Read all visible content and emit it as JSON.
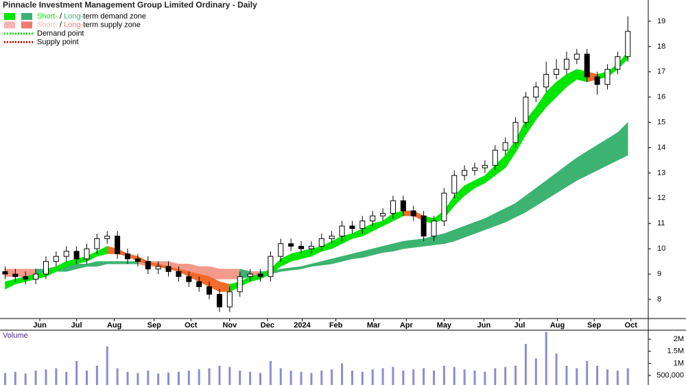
{
  "chart_data": {
    "type": "candlestick",
    "title": "Pinnacle Investment Management Group Limited Ordinary - Daily",
    "legend": [
      {
        "short": "Short-",
        "sep": " / ",
        "long": "Long-",
        "rest": "term demand zone",
        "short_color": "#00e600",
        "long_color": "#3cb371"
      },
      {
        "short": "Short-",
        "sep": " / ",
        "long": "Long-",
        "rest": "term supply zone",
        "short_color": "#f7b3b3",
        "long_color": "#f07a6e"
      },
      {
        "label": "Demand point",
        "color": "#00e600"
      },
      {
        "label": "Supply point",
        "color": "#e00000"
      }
    ],
    "xlim": [
      0,
      63.5
    ],
    "xticks": [
      {
        "value": 3.9,
        "label": "Jun"
      },
      {
        "value": 7.5,
        "label": "Jul"
      },
      {
        "value": 11.2,
        "label": "Aug"
      },
      {
        "value": 15.1,
        "label": "Sep"
      },
      {
        "value": 18.7,
        "label": "Oct"
      },
      {
        "value": 22.5,
        "label": "Nov"
      },
      {
        "value": 26.2,
        "label": "Dec"
      },
      {
        "value": 29.6,
        "label": "2024"
      },
      {
        "value": 32.9,
        "label": "Feb"
      },
      {
        "value": 36.6,
        "label": "Mar"
      },
      {
        "value": 39.8,
        "label": "Apr"
      },
      {
        "value": 43.5,
        "label": "May"
      },
      {
        "value": 47.4,
        "label": "Jun"
      },
      {
        "value": 50.9,
        "label": "Jul"
      },
      {
        "value": 54.6,
        "label": "Aug"
      },
      {
        "value": 58.2,
        "label": "Sep"
      },
      {
        "value": 61.8,
        "label": "Oct"
      }
    ],
    "ylim": [
      7.24,
      19.84
    ],
    "yticks": [
      8,
      9,
      10,
      11,
      12,
      13,
      14,
      15,
      16,
      17,
      18,
      19
    ],
    "open": [
      9.1,
      9.0,
      8.9,
      8.8,
      9.0,
      9.5,
      9.7,
      9.9,
      9.6,
      10.0,
      10.4,
      10.5,
      9.8,
      9.6,
      9.5,
      9.2,
      9.3,
      9.1,
      8.9,
      8.7,
      8.5,
      8.2,
      7.7,
      8.3,
      8.9,
      9.0,
      8.9,
      9.7,
      10.2,
      10.1,
      10.0,
      10.1,
      10.4,
      10.5,
      10.9,
      10.8,
      11.1,
      11.3,
      11.4,
      11.9,
      11.5,
      11.3,
      10.5,
      11.1,
      12.2,
      12.9,
      13.1,
      13.2,
      13.3,
      13.9,
      14.2,
      15.0,
      16.0,
      16.4,
      16.9,
      17.1,
      17.5,
      17.7,
      16.8,
      16.5,
      17.1,
      17.6
    ],
    "high": [
      9.3,
      9.2,
      9.1,
      9.2,
      9.7,
      9.9,
      10.1,
      10.1,
      10.2,
      10.6,
      10.7,
      10.7,
      10.0,
      9.8,
      9.7,
      9.5,
      9.5,
      9.3,
      9.1,
      8.9,
      8.7,
      8.4,
      8.5,
      9.1,
      9.2,
      9.2,
      9.9,
      10.4,
      10.4,
      10.3,
      10.3,
      10.6,
      10.7,
      11.1,
      11.1,
      11.3,
      11.5,
      11.6,
      12.1,
      12.1,
      11.7,
      11.5,
      11.3,
      12.4,
      13.1,
      13.3,
      13.4,
      13.5,
      14.1,
      14.4,
      15.2,
      16.2,
      16.6,
      17.4,
      17.5,
      17.8,
      17.9,
      17.9,
      17.0,
      17.3,
      17.8,
      19.2
    ],
    "low": [
      8.8,
      8.7,
      8.6,
      8.6,
      8.8,
      9.3,
      9.5,
      9.4,
      9.4,
      9.8,
      10.2,
      9.6,
      9.4,
      9.3,
      9.0,
      9.0,
      8.9,
      8.7,
      8.5,
      8.3,
      8.0,
      7.5,
      7.5,
      8.1,
      8.7,
      8.7,
      8.7,
      9.5,
      9.9,
      9.8,
      9.8,
      9.9,
      10.2,
      10.3,
      10.6,
      10.6,
      10.9,
      11.1,
      11.2,
      11.3,
      11.1,
      10.3,
      10.3,
      10.9,
      12.0,
      12.7,
      12.9,
      13.0,
      13.1,
      13.7,
      14.0,
      14.8,
      15.8,
      16.2,
      16.7,
      16.9,
      17.3,
      16.6,
      16.1,
      16.3,
      16.9,
      17.4
    ],
    "close": [
      9.0,
      8.9,
      8.8,
      9.0,
      9.5,
      9.7,
      9.9,
      9.6,
      10.0,
      10.4,
      10.5,
      9.8,
      9.6,
      9.5,
      9.2,
      9.3,
      9.1,
      8.9,
      8.7,
      8.5,
      8.2,
      7.7,
      8.3,
      8.9,
      9.0,
      8.9,
      9.7,
      10.2,
      10.1,
      10.0,
      10.1,
      10.4,
      10.5,
      10.9,
      10.8,
      11.1,
      11.3,
      11.4,
      11.9,
      11.5,
      11.3,
      10.5,
      11.1,
      12.2,
      12.9,
      13.1,
      13.2,
      13.3,
      13.9,
      14.2,
      15.0,
      16.0,
      16.4,
      16.9,
      17.1,
      17.5,
      17.7,
      16.8,
      16.5,
      17.1,
      17.6,
      18.6
    ],
    "short_zone": {
      "demand_color": "#00e600",
      "supply_color": "#f26b2a",
      "upper": [
        8.7,
        8.8,
        8.9,
        9.0,
        9.1,
        9.3,
        9.5,
        9.6,
        9.7,
        9.9,
        10.1,
        10.0,
        9.8,
        9.7,
        9.5,
        9.4,
        9.3,
        9.2,
        9.1,
        9.0,
        8.9,
        8.7,
        8.6,
        8.7,
        8.9,
        9.0,
        9.2,
        9.6,
        9.8,
        9.9,
        10.0,
        10.1,
        10.3,
        10.5,
        10.6,
        10.8,
        11.0,
        11.1,
        11.4,
        11.5,
        11.5,
        11.3,
        11.2,
        11.5,
        12.1,
        12.5,
        12.7,
        12.9,
        13.3,
        13.7,
        14.3,
        15.1,
        15.6,
        16.2,
        16.6,
        16.9,
        17.1,
        17.0,
        16.9,
        17.0,
        17.3,
        17.8
      ],
      "lower": [
        8.4,
        8.6,
        8.7,
        8.8,
        8.9,
        9.1,
        9.3,
        9.4,
        9.5,
        9.7,
        9.8,
        9.8,
        9.7,
        9.5,
        9.4,
        9.3,
        9.2,
        9.1,
        8.9,
        8.7,
        8.5,
        8.3,
        8.3,
        8.5,
        8.7,
        8.8,
        9.0,
        9.3,
        9.5,
        9.6,
        9.7,
        9.9,
        10.0,
        10.2,
        10.4,
        10.5,
        10.7,
        10.9,
        11.1,
        11.3,
        11.3,
        11.1,
        11.0,
        11.2,
        11.7,
        12.1,
        12.4,
        12.6,
        12.9,
        13.2,
        13.8,
        14.5,
        15.1,
        15.6,
        16.0,
        16.4,
        16.7,
        16.6,
        16.7,
        16.8,
        17.1,
        17.5
      ]
    },
    "long_zone": {
      "demand_color": "#3cb371",
      "supply_color": "#f39a8c",
      "upper": [
        9.2,
        9.2,
        9.2,
        9.2,
        9.2,
        9.3,
        9.3,
        9.4,
        9.4,
        9.5,
        9.5,
        9.5,
        9.5,
        9.5,
        9.5,
        9.5,
        9.5,
        9.4,
        9.4,
        9.3,
        9.3,
        9.2,
        9.2,
        9.2,
        9.1,
        9.1,
        9.1,
        9.2,
        9.25,
        9.3,
        9.4,
        9.5,
        9.6,
        9.7,
        9.8,
        9.9,
        10.0,
        10.1,
        10.2,
        10.3,
        10.35,
        10.4,
        10.5,
        10.6,
        10.75,
        10.9,
        11.05,
        11.2,
        11.4,
        11.6,
        11.8,
        12.1,
        12.4,
        12.7,
        13.0,
        13.3,
        13.6,
        13.85,
        14.1,
        14.35,
        14.6,
        15.0
      ],
      "lower": [
        8.9,
        8.9,
        8.9,
        8.9,
        9.0,
        9.1,
        9.1,
        9.2,
        9.3,
        9.3,
        9.4,
        9.4,
        9.4,
        9.4,
        9.3,
        9.3,
        9.2,
        9.1,
        9.0,
        8.9,
        8.8,
        8.8,
        8.8,
        8.8,
        8.9,
        8.9,
        9.0,
        9.1,
        9.15,
        9.2,
        9.3,
        9.35,
        9.4,
        9.5,
        9.6,
        9.65,
        9.75,
        9.85,
        9.9,
        10.0,
        10.05,
        10.1,
        10.15,
        10.2,
        10.3,
        10.45,
        10.6,
        10.75,
        10.9,
        11.05,
        11.25,
        11.45,
        11.7,
        11.95,
        12.2,
        12.45,
        12.7,
        12.9,
        13.1,
        13.3,
        13.5,
        13.7
      ]
    },
    "volume": {
      "label": "Volume",
      "color": "#8c8cd0",
      "ylim": [
        105000,
        2370000
      ],
      "yticks": [
        {
          "value": 500000,
          "label": "500,000"
        },
        {
          "value": 1000000,
          "label": "1M"
        },
        {
          "value": 1500000,
          "label": "1.5M"
        },
        {
          "value": 2000000,
          "label": "2M"
        }
      ],
      "values": [
        600000,
        650000,
        580000,
        700000,
        750000,
        800000,
        650000,
        1100000,
        700000,
        900000,
        1700000,
        800000,
        650000,
        600000,
        700000,
        580000,
        620000,
        650000,
        700000,
        750000,
        800000,
        900000,
        850000,
        700000,
        650000,
        600000,
        1100000,
        800000,
        700000,
        650000,
        600000,
        700000,
        750000,
        1000000,
        700000,
        650000,
        750000,
        800000,
        850000,
        700000,
        750000,
        800000,
        700000,
        900000,
        850000,
        750000,
        700000,
        650000,
        800000,
        850000,
        900000,
        1800000,
        1200000,
        2300000,
        1400000,
        900000,
        800000,
        1100000,
        900000,
        750000,
        700000,
        800000
      ]
    }
  }
}
